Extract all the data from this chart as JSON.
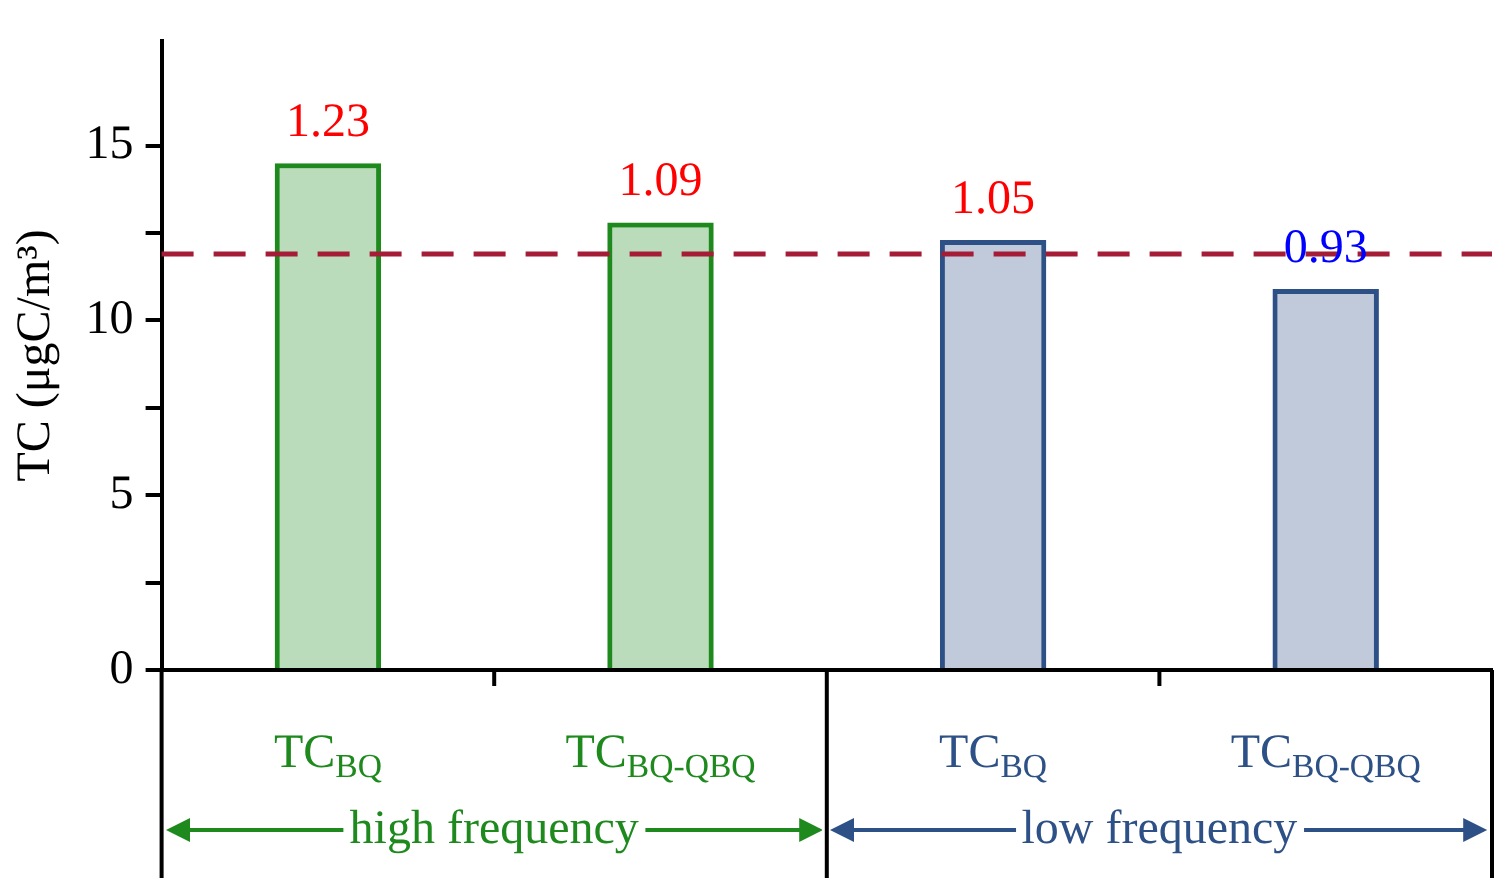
{
  "chart_data": {
    "type": "bar",
    "ylabel": "TC (μgC/m³)",
    "categories": [
      "TC$_{BQ}$",
      "TC$_{BQ-QBQ}$",
      "TC$_{BQ}$",
      "TC$_{BQ-QBQ}$"
    ],
    "values": [
      14.5,
      12.8,
      12.3,
      10.9
    ],
    "colors": [
      "#1e8a1e",
      "#1e8a1e",
      "#2d5186",
      "#2d5186"
    ],
    "ylim": [
      0,
      18
    ],
    "yticks": [
      0,
      {
        "value": 2.5,
        "label": null
      },
      5,
      {
        "value": 7.5,
        "label": null
      },
      10,
      {
        "value": 12.5,
        "label": null
      },
      15
    ],
    "ref_lines": [
      {
        "axis": "y",
        "value": 11.9,
        "color": "#a51c36",
        "line_style": "dashed"
      }
    ],
    "annotations": [
      "1.23",
      "1.09",
      "1.05",
      "0.93",
      "high frequency",
      "low frequency"
    ],
    "grid": false,
    "legend": false
  }
}
